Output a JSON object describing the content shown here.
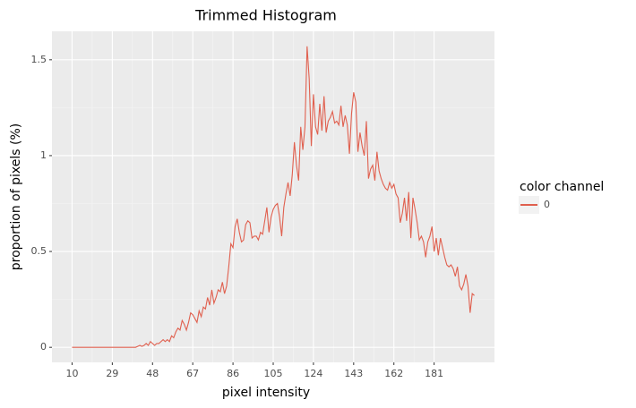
{
  "chart_data": {
    "type": "line",
    "title": "Trimmed Histogram",
    "x_label": "pixel intensity",
    "y_label": "proportion of pixels (%)",
    "legend_title": "color channel",
    "legend_position": "right",
    "grid": true,
    "x": [
      10,
      11,
      12,
      13,
      14,
      15,
      16,
      17,
      18,
      19,
      20,
      21,
      22,
      23,
      24,
      25,
      26,
      27,
      28,
      29,
      30,
      31,
      32,
      33,
      34,
      35,
      36,
      37,
      38,
      39,
      40,
      41,
      42,
      43,
      44,
      45,
      46,
      47,
      48,
      49,
      50,
      51,
      52,
      53,
      54,
      55,
      56,
      57,
      58,
      59,
      60,
      61,
      62,
      63,
      64,
      65,
      66,
      67,
      68,
      69,
      70,
      71,
      72,
      73,
      74,
      75,
      76,
      77,
      78,
      79,
      80,
      81,
      82,
      83,
      84,
      85,
      86,
      87,
      88,
      89,
      90,
      91,
      92,
      93,
      94,
      95,
      96,
      97,
      98,
      99,
      100,
      101,
      102,
      103,
      104,
      105,
      106,
      107,
      108,
      109,
      110,
      111,
      112,
      113,
      114,
      115,
      116,
      117,
      118,
      119,
      120,
      121,
      122,
      123,
      124,
      125,
      126,
      127,
      128,
      129,
      130,
      131,
      132,
      133,
      134,
      135,
      136,
      137,
      138,
      139,
      140,
      141,
      142,
      143,
      144,
      145,
      146,
      147,
      148,
      149,
      150,
      151,
      152,
      153,
      154,
      155,
      156,
      157,
      158,
      159,
      160,
      161,
      162,
      163,
      164,
      165,
      166,
      167,
      168,
      169,
      170,
      171,
      172,
      173,
      174,
      175,
      176,
      177,
      178,
      179,
      180,
      181,
      182,
      183,
      184,
      185,
      186,
      187,
      188,
      189,
      190,
      191,
      192,
      193,
      194,
      195,
      196,
      197,
      198,
      199,
      200
    ],
    "series": [
      {
        "name": "0",
        "color": "#e0604f",
        "values": [
          0,
          0,
          0,
          0,
          0,
          0,
          0,
          0,
          0,
          0,
          0,
          0,
          0,
          0,
          0,
          0,
          0,
          0,
          0,
          0,
          0,
          0,
          0,
          0,
          0,
          0,
          0,
          0,
          0,
          0,
          0,
          0.005,
          0.01,
          0.005,
          0.01,
          0.02,
          0.01,
          0.03,
          0.02,
          0.01,
          0.02,
          0.02,
          0.03,
          0.04,
          0.03,
          0.04,
          0.03,
          0.06,
          0.05,
          0.08,
          0.1,
          0.09,
          0.14,
          0.12,
          0.09,
          0.13,
          0.18,
          0.17,
          0.15,
          0.13,
          0.19,
          0.16,
          0.21,
          0.2,
          0.26,
          0.22,
          0.3,
          0.23,
          0.26,
          0.3,
          0.29,
          0.34,
          0.28,
          0.32,
          0.42,
          0.54,
          0.52,
          0.63,
          0.67,
          0.6,
          0.55,
          0.56,
          0.64,
          0.66,
          0.65,
          0.57,
          0.58,
          0.58,
          0.56,
          0.6,
          0.59,
          0.66,
          0.73,
          0.6,
          0.68,
          0.72,
          0.74,
          0.75,
          0.68,
          0.58,
          0.73,
          0.8,
          0.86,
          0.79,
          0.9,
          1.07,
          0.95,
          0.87,
          1.15,
          1.03,
          1.15,
          1.57,
          1.4,
          1.05,
          1.32,
          1.15,
          1.11,
          1.27,
          1.13,
          1.31,
          1.12,
          1.18,
          1.2,
          1.23,
          1.17,
          1.18,
          1.16,
          1.26,
          1.15,
          1.21,
          1.16,
          1.01,
          1.22,
          1.33,
          1.28,
          1.02,
          1.12,
          1.05,
          1.0,
          1.18,
          0.88,
          0.93,
          0.95,
          0.87,
          1.02,
          0.92,
          0.88,
          0.85,
          0.83,
          0.82,
          0.86,
          0.83,
          0.85,
          0.8,
          0.78,
          0.65,
          0.7,
          0.78,
          0.66,
          0.81,
          0.57,
          0.78,
          0.72,
          0.65,
          0.56,
          0.58,
          0.55,
          0.47,
          0.55,
          0.58,
          0.63,
          0.5,
          0.57,
          0.48,
          0.57,
          0.52,
          0.47,
          0.43,
          0.42,
          0.43,
          0.41,
          0.37,
          0.42,
          0.32,
          0.3,
          0.33,
          0.38,
          0.32,
          0.18,
          0.28,
          0.27
        ]
      }
    ],
    "xlim": [
      0.5,
      209.5
    ],
    "xticks": [
      10,
      29,
      48,
      67,
      86,
      105,
      124,
      143,
      162,
      181
    ],
    "ylim": [
      -0.0785,
      1.6485
    ],
    "yticks": [
      0,
      0.5,
      1,
      1.5
    ]
  }
}
